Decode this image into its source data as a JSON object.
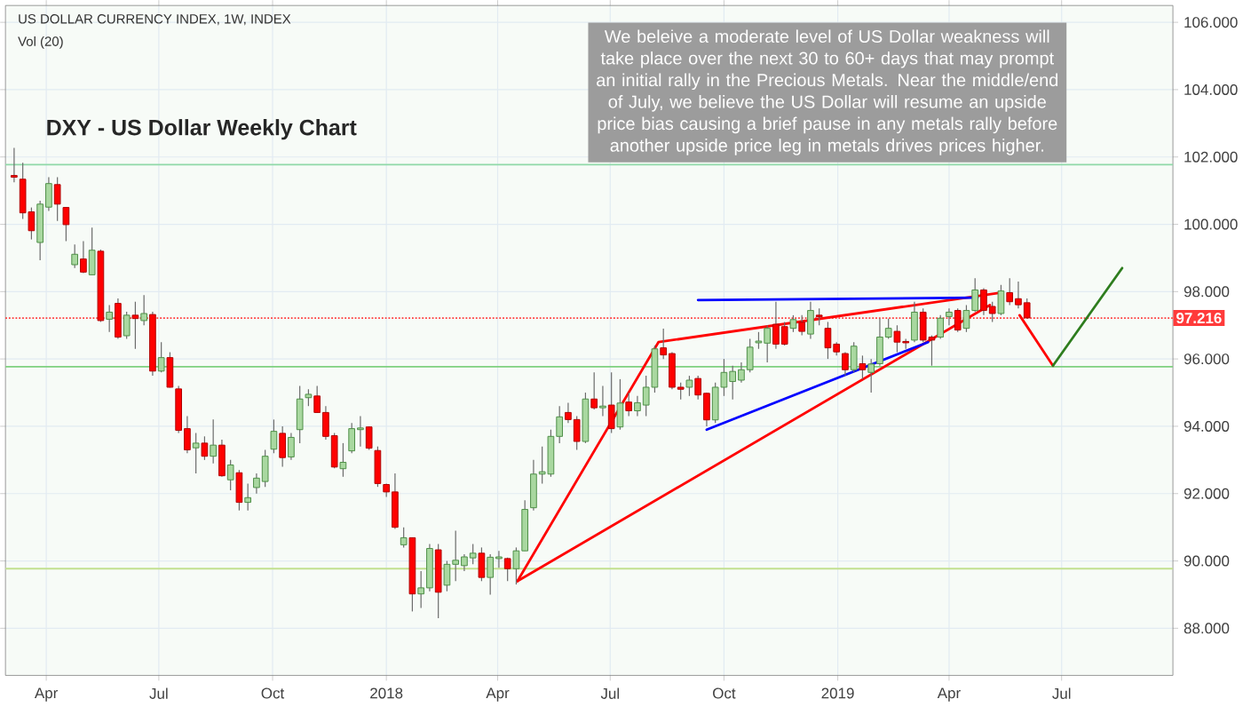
{
  "chart_data": {
    "type": "candlestick",
    "title": "DXY - US Dollar Weekly Chart",
    "annotations": [
      "US DOLLAR CURRENCY INDEX, 1W, INDEX",
      "Vol (20)",
      "We beleive a moderate level of US Dollar weakness will take place over the next 30 to 60+ days that may prompt an initial rally in the Precious Metals. Near the middle/end of July, we believe the US Dollar will resume an upside price bias causing a brief pause in any metals rally before another upside price leg in metals drives prices higher."
    ],
    "x": [
      "2017-03-06",
      "2017-03-13",
      "2017-03-20",
      "2017-03-27",
      "2017-04-03",
      "2017-04-10",
      "2017-04-17",
      "2017-04-24",
      "2017-05-01",
      "2017-05-08",
      "2017-05-15",
      "2017-05-22",
      "2017-05-29",
      "2017-06-05",
      "2017-06-12",
      "2017-06-19",
      "2017-06-26",
      "2017-07-03",
      "2017-07-10",
      "2017-07-17",
      "2017-07-24",
      "2017-07-31",
      "2017-08-07",
      "2017-08-14",
      "2017-08-21",
      "2017-08-28",
      "2017-09-04",
      "2017-09-11",
      "2017-09-18",
      "2017-09-25",
      "2017-10-02",
      "2017-10-09",
      "2017-10-16",
      "2017-10-23",
      "2017-10-30",
      "2017-11-06",
      "2017-11-13",
      "2017-11-20",
      "2017-11-27",
      "2017-12-04",
      "2017-12-11",
      "2017-12-18",
      "2017-12-25",
      "2018-01-01",
      "2018-01-08",
      "2018-01-15",
      "2018-01-22",
      "2018-01-29",
      "2018-02-05",
      "2018-02-12",
      "2018-02-19",
      "2018-02-26",
      "2018-03-05",
      "2018-03-12",
      "2018-03-19",
      "2018-03-26",
      "2018-04-02",
      "2018-04-09",
      "2018-04-16",
      "2018-04-23",
      "2018-04-30",
      "2018-05-07",
      "2018-05-14",
      "2018-05-21",
      "2018-05-28",
      "2018-06-04",
      "2018-06-11",
      "2018-06-18",
      "2018-06-25",
      "2018-07-02",
      "2018-07-09",
      "2018-07-16",
      "2018-07-23",
      "2018-07-30",
      "2018-08-06",
      "2018-08-13",
      "2018-08-20",
      "2018-08-27",
      "2018-09-03",
      "2018-09-10",
      "2018-09-17",
      "2018-09-24",
      "2018-10-01",
      "2018-10-08",
      "2018-10-15",
      "2018-10-22",
      "2018-10-29",
      "2018-11-05",
      "2018-11-12",
      "2018-11-19",
      "2018-11-26",
      "2018-12-03",
      "2018-12-10",
      "2018-12-17",
      "2018-12-24",
      "2018-12-31",
      "2019-01-07",
      "2019-01-14",
      "2019-01-21",
      "2019-01-28",
      "2019-02-04",
      "2019-02-11",
      "2019-02-18",
      "2019-02-25",
      "2019-03-04",
      "2019-03-11",
      "2019-03-18",
      "2019-03-25",
      "2019-04-01",
      "2019-04-08",
      "2019-04-15",
      "2019-04-22",
      "2019-04-29",
      "2019-05-06",
      "2019-05-13",
      "2019-05-20",
      "2019-05-27",
      "2019-06-03"
    ],
    "ohlc": [
      [
        101.45,
        102.27,
        101.25,
        101.4
      ],
      [
        101.34,
        101.83,
        100.16,
        100.34
      ],
      [
        100.37,
        100.5,
        99.55,
        99.81
      ],
      [
        99.46,
        100.7,
        98.93,
        100.6
      ],
      [
        100.51,
        101.4,
        100.4,
        101.21
      ],
      [
        101.18,
        101.4,
        100.1,
        100.6
      ],
      [
        100.5,
        100.5,
        99.5,
        99.99
      ],
      [
        98.8,
        99.4,
        98.7,
        99.11
      ],
      [
        98.97,
        99.5,
        98.55,
        98.58
      ],
      [
        98.5,
        99.9,
        98.5,
        99.23
      ],
      [
        99.2,
        99.25,
        97.1,
        97.14
      ],
      [
        97.18,
        97.6,
        96.8,
        97.39
      ],
      [
        97.65,
        97.8,
        96.6,
        96.65
      ],
      [
        96.69,
        97.4,
        96.6,
        97.3
      ],
      [
        97.3,
        97.7,
        96.3,
        97.2
      ],
      [
        97.14,
        97.9,
        97.0,
        97.35
      ],
      [
        97.32,
        97.4,
        95.5,
        95.64
      ],
      [
        95.64,
        96.5,
        95.6,
        96.04
      ],
      [
        96.04,
        96.2,
        95.15,
        95.16
      ],
      [
        95.11,
        95.2,
        93.8,
        93.88
      ],
      [
        93.93,
        94.3,
        93.2,
        93.3
      ],
      [
        93.36,
        93.8,
        92.6,
        93.5
      ],
      [
        93.5,
        93.7,
        93.0,
        93.11
      ],
      [
        93.11,
        94.2,
        92.9,
        93.44
      ],
      [
        93.44,
        93.6,
        92.5,
        92.53
      ],
      [
        92.41,
        93.0,
        92.1,
        92.85
      ],
      [
        92.62,
        92.7,
        91.5,
        91.74
      ],
      [
        91.74,
        92.3,
        91.5,
        91.88
      ],
      [
        92.18,
        92.6,
        92.0,
        92.46
      ],
      [
        92.36,
        93.3,
        92.2,
        93.11
      ],
      [
        93.32,
        94.2,
        93.2,
        93.85
      ],
      [
        93.79,
        94.0,
        92.8,
        93.07
      ],
      [
        93.09,
        93.8,
        93.0,
        93.67
      ],
      [
        93.9,
        95.2,
        93.5,
        94.81
      ],
      [
        94.85,
        95.1,
        94.6,
        94.95
      ],
      [
        94.9,
        95.2,
        94.4,
        94.41
      ],
      [
        94.41,
        94.6,
        93.6,
        93.7
      ],
      [
        93.72,
        93.8,
        92.75,
        92.79
      ],
      [
        92.74,
        93.5,
        92.5,
        92.93
      ],
      [
        93.27,
        94.1,
        93.2,
        93.93
      ],
      [
        93.9,
        94.3,
        93.4,
        93.95
      ],
      [
        93.98,
        94.0,
        93.3,
        93.35
      ],
      [
        93.28,
        93.4,
        92.2,
        92.3
      ],
      [
        92.27,
        92.3,
        91.9,
        92.05
      ],
      [
        92.05,
        92.6,
        90.95,
        91.0
      ],
      [
        90.48,
        91.0,
        90.4,
        90.69
      ],
      [
        90.69,
        90.7,
        88.5,
        89.02
      ],
      [
        89.02,
        89.7,
        88.6,
        89.2
      ],
      [
        89.2,
        90.5,
        89.1,
        90.37
      ],
      [
        90.33,
        90.5,
        88.3,
        89.07
      ],
      [
        89.28,
        90.0,
        89.1,
        89.9
      ],
      [
        89.9,
        90.9,
        89.4,
        90.02
      ],
      [
        89.86,
        90.2,
        89.7,
        90.12
      ],
      [
        90.09,
        90.5,
        89.9,
        90.23
      ],
      [
        90.23,
        90.4,
        89.4,
        89.51
      ],
      [
        89.51,
        90.2,
        89.0,
        90.11
      ],
      [
        90.07,
        90.3,
        89.8,
        90.12
      ],
      [
        90.07,
        90.1,
        89.4,
        89.77
      ],
      [
        89.77,
        90.4,
        89.3,
        90.3
      ],
      [
        90.3,
        91.8,
        90.3,
        91.53
      ],
      [
        91.58,
        93.0,
        91.5,
        92.58
      ],
      [
        92.58,
        93.4,
        92.3,
        92.65
      ],
      [
        92.58,
        93.9,
        92.5,
        93.7
      ],
      [
        93.7,
        94.6,
        93.5,
        94.28
      ],
      [
        94.41,
        94.7,
        94.1,
        94.2
      ],
      [
        94.2,
        94.3,
        93.3,
        93.55
      ],
      [
        93.55,
        95.0,
        93.5,
        94.81
      ],
      [
        94.81,
        95.6,
        94.5,
        94.55
      ],
      [
        94.55,
        95.2,
        94.3,
        94.6
      ],
      [
        94.63,
        95.6,
        93.8,
        93.93
      ],
      [
        93.98,
        95.4,
        93.9,
        94.69
      ],
      [
        94.72,
        95.0,
        94.3,
        94.46
      ],
      [
        94.46,
        94.9,
        94.3,
        94.7
      ],
      [
        94.63,
        95.5,
        94.3,
        95.16
      ],
      [
        95.16,
        96.4,
        95.0,
        96.3
      ],
      [
        96.33,
        96.9,
        96.0,
        96.12
      ],
      [
        96.16,
        96.2,
        95.1,
        95.16
      ],
      [
        95.16,
        95.3,
        94.8,
        95.1
      ],
      [
        95.16,
        95.5,
        94.9,
        95.37
      ],
      [
        95.42,
        95.5,
        94.8,
        94.93
      ],
      [
        94.98,
        95.0,
        94.0,
        94.19
      ],
      [
        94.19,
        95.3,
        94.1,
        95.16
      ],
      [
        95.16,
        96.0,
        94.9,
        95.6
      ],
      [
        95.33,
        95.8,
        94.8,
        95.63
      ],
      [
        95.37,
        95.9,
        95.3,
        95.68
      ],
      [
        95.68,
        96.6,
        95.6,
        96.35
      ],
      [
        96.48,
        96.8,
        96.3,
        96.53
      ],
      [
        96.47,
        97.0,
        95.9,
        96.91
      ],
      [
        97.03,
        97.7,
        96.3,
        96.44
      ],
      [
        96.96,
        97.1,
        96.4,
        96.44
      ],
      [
        96.91,
        97.3,
        96.8,
        97.17
      ],
      [
        97.09,
        97.3,
        96.7,
        96.82
      ],
      [
        96.74,
        97.7,
        96.6,
        97.44
      ],
      [
        97.3,
        97.5,
        97.0,
        97.25
      ],
      [
        96.91,
        97.1,
        96.0,
        96.33
      ],
      [
        96.44,
        96.5,
        96.1,
        96.21
      ],
      [
        96.16,
        96.2,
        95.5,
        95.68
      ],
      [
        95.68,
        96.5,
        95.6,
        96.38
      ],
      [
        95.86,
        96.1,
        95.4,
        95.68
      ],
      [
        95.6,
        96.0,
        95.0,
        95.85
      ],
      [
        95.86,
        97.2,
        95.8,
        96.65
      ],
      [
        96.65,
        97.2,
        96.6,
        96.91
      ],
      [
        96.82,
        97.0,
        96.2,
        96.5
      ],
      [
        96.52,
        96.6,
        96.3,
        96.48
      ],
      [
        96.56,
        97.7,
        96.5,
        97.39
      ],
      [
        97.39,
        97.5,
        96.5,
        96.56
      ],
      [
        96.65,
        96.7,
        95.8,
        96.56
      ],
      [
        96.65,
        97.3,
        96.6,
        97.21
      ],
      [
        97.26,
        97.5,
        97.0,
        97.39
      ],
      [
        97.44,
        97.5,
        96.8,
        96.86
      ],
      [
        96.91,
        97.6,
        96.8,
        97.44
      ],
      [
        97.44,
        98.4,
        97.4,
        98.05
      ],
      [
        98.05,
        98.1,
        97.3,
        97.44
      ],
      [
        97.56,
        97.7,
        97.1,
        97.35
      ],
      [
        97.35,
        98.2,
        97.3,
        98.02
      ],
      [
        97.97,
        98.4,
        97.6,
        97.7
      ],
      [
        97.79,
        98.3,
        97.5,
        97.61
      ],
      [
        97.67,
        97.8,
        97.2,
        97.22
      ]
    ],
    "series": [
      {
        "type": "line",
        "color": "#ff0000",
        "x": [
          "2018-04-17",
          "2018-08-09",
          "2019-05-11"
        ],
        "values": [
          89.4,
          96.5,
          97.96
        ]
      },
      {
        "type": "line",
        "color": "#ff0000",
        "x": [
          "2018-04-17",
          "2019-05-04"
        ],
        "values": [
          89.4,
          97.6
        ]
      },
      {
        "type": "line",
        "color": "#0000ff",
        "x": [
          "2018-09-10",
          "2019-04-24"
        ],
        "values": [
          97.75,
          97.82
        ]
      },
      {
        "type": "line",
        "color": "#0000ff",
        "x": [
          "2018-09-17",
          "2019-03-15"
        ],
        "values": [
          93.9,
          96.5
        ]
      },
      {
        "type": "line",
        "color": "#ff0000",
        "x": [
          "2019-05-28",
          "2019-06-24"
        ],
        "values": [
          97.3,
          95.8
        ]
      },
      {
        "type": "line",
        "color": "#2e7d1e",
        "x": [
          "2019-06-24",
          "2019-08-19"
        ],
        "values": [
          95.8,
          98.7
        ]
      }
    ],
    "ref_lines": [
      {
        "axis": "y",
        "value": 101.77,
        "color": "#8fd9a8",
        "line_style": "solid"
      },
      {
        "axis": "y",
        "value": 95.77,
        "color": "#7fd07f",
        "line_style": "solid"
      },
      {
        "axis": "y",
        "value": 89.77,
        "color": "#c2e08f",
        "line_style": "solid"
      },
      {
        "axis": "y",
        "value": 97.216,
        "color": "#ff3b3b",
        "line_style": "dotted",
        "label": "97.216"
      }
    ],
    "xlim": [
      "2017-02-27",
      "2019-09-29"
    ],
    "xticks": [
      {
        "value": "2017-04-01",
        "label": "Apr"
      },
      {
        "value": "2017-07-01",
        "label": "Jul"
      },
      {
        "value": "2017-10-01",
        "label": "Oct"
      },
      {
        "value": "2018-01-01",
        "label": "2018"
      },
      {
        "value": "2018-04-01",
        "label": "Apr"
      },
      {
        "value": "2018-07-01",
        "label": "Jul"
      },
      {
        "value": "2018-10-01",
        "label": "Oct"
      },
      {
        "value": "2019-01-01",
        "label": "2019"
      },
      {
        "value": "2019-04-01",
        "label": "Apr"
      },
      {
        "value": "2019-07-01",
        "label": "Jul"
      }
    ],
    "ylim": [
      86.6,
      106.5
    ],
    "yticks": [
      {
        "value": 88,
        "label": "88.000"
      },
      {
        "value": 90,
        "label": "90.000"
      },
      {
        "value": 92,
        "label": "92.000"
      },
      {
        "value": 94,
        "label": "94.000"
      },
      {
        "value": 96,
        "label": "96.000"
      },
      {
        "value": 98,
        "label": "98.000"
      },
      {
        "value": 100,
        "label": "100.000"
      },
      {
        "value": 102,
        "label": "102.000"
      },
      {
        "value": 104,
        "label": "104.000"
      },
      {
        "value": 106,
        "label": "106.000"
      }
    ],
    "grid": true
  }
}
